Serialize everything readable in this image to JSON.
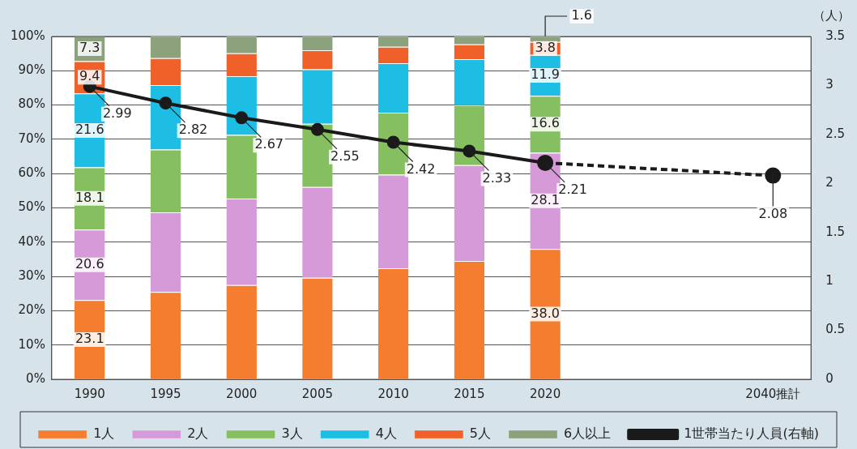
{
  "chart_data": {
    "type": "bar",
    "stacked": true,
    "y2label": "（人）",
    "categories": [
      "1990",
      "1995",
      "2000",
      "2005",
      "2010",
      "2015",
      "2020",
      null,
      null,
      "2040推計"
    ],
    "series": [
      {
        "name": "1人",
        "color": "#f47d30",
        "values": [
          23.1,
          25.5,
          27.5,
          29.6,
          32.4,
          34.5,
          38.0,
          null,
          null,
          null
        ],
        "value_labels": [
          "23.1",
          null,
          null,
          null,
          null,
          null,
          "38.0",
          null,
          null,
          null
        ]
      },
      {
        "name": "2人",
        "color": "#d69ad8",
        "values": [
          20.6,
          23.2,
          25.2,
          26.5,
          27.3,
          28.0,
          28.1,
          null,
          null,
          null
        ],
        "value_labels": [
          "20.6",
          null,
          null,
          null,
          null,
          null,
          "28.1",
          null,
          null,
          null
        ]
      },
      {
        "name": "3人",
        "color": "#86bf60",
        "values": [
          18.1,
          18.3,
          18.6,
          18.4,
          18.1,
          17.5,
          16.6,
          null,
          null,
          null
        ],
        "value_labels": [
          "18.1",
          null,
          null,
          null,
          null,
          null,
          "16.6",
          null,
          null,
          null
        ]
      },
      {
        "name": "4人",
        "color": "#1ebde4",
        "values": [
          21.6,
          18.8,
          17.1,
          15.9,
          14.4,
          13.4,
          11.9,
          null,
          null,
          null
        ],
        "value_labels": [
          "21.6",
          null,
          null,
          null,
          null,
          null,
          "11.9",
          null,
          null,
          null
        ]
      },
      {
        "name": "5人",
        "color": "#f0612a",
        "values": [
          9.4,
          7.9,
          6.7,
          5.6,
          4.8,
          4.3,
          3.8,
          null,
          null,
          null
        ],
        "value_labels": [
          "9.4",
          null,
          null,
          null,
          null,
          null,
          "3.8",
          null,
          null,
          null
        ]
      },
      {
        "name": "6人以上",
        "color": "#8ca27c",
        "values": [
          7.3,
          6.3,
          4.9,
          4.0,
          3.0,
          2.3,
          1.6,
          null,
          null,
          null
        ],
        "value_labels": [
          "7.3",
          null,
          null,
          null,
          null,
          null,
          "1.6",
          null,
          null,
          null
        ]
      },
      {
        "name": "1世帯当たり人員(右軸)",
        "type": "line",
        "axis": "y2",
        "color": "#1a1a1a",
        "marker": "circle",
        "line_style": "solid",
        "values": [
          2.99,
          2.82,
          2.67,
          2.55,
          2.42,
          2.33,
          2.21,
          null,
          null,
          null
        ],
        "value_labels": [
          "2.99",
          "2.82",
          "2.67",
          "2.55",
          "2.42",
          "2.33",
          "2.21",
          null,
          null,
          null
        ]
      },
      {
        "type": "line",
        "axis": "y2",
        "color": "#1a1a1a",
        "marker": "circle",
        "line_style": "dashed",
        "values": [
          null,
          null,
          null,
          null,
          null,
          null,
          2.21,
          null,
          null,
          2.08
        ],
        "value_labels": [
          null,
          null,
          null,
          null,
          null,
          null,
          null,
          null,
          null,
          "2.08"
        ]
      }
    ],
    "ylim": [
      0,
      100
    ],
    "yticks": [
      {
        "value": 0,
        "label": "0%"
      },
      {
        "value": 10,
        "label": "10%"
      },
      {
        "value": 20,
        "label": "20%"
      },
      {
        "value": 30,
        "label": "30%"
      },
      {
        "value": 40,
        "label": "40%"
      },
      {
        "value": 50,
        "label": "50%"
      },
      {
        "value": 60,
        "label": "60%"
      },
      {
        "value": 70,
        "label": "70%"
      },
      {
        "value": 80,
        "label": "80%"
      },
      {
        "value": 90,
        "label": "90%"
      },
      {
        "value": 100,
        "label": "100%"
      }
    ],
    "y2lim": [
      0,
      3.5
    ],
    "y2ticks": [
      0,
      0.5,
      1,
      1.5,
      2,
      2.5,
      3,
      3.5
    ],
    "grid": "y",
    "legend": "bottom"
  }
}
